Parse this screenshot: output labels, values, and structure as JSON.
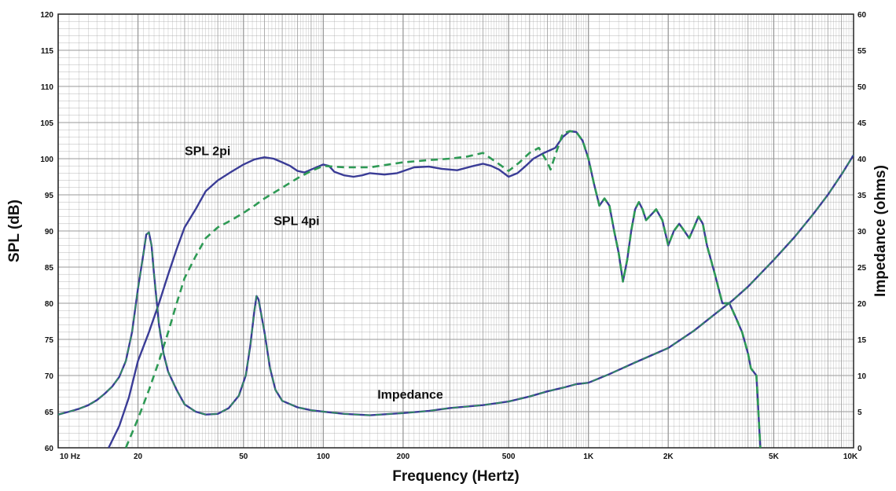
{
  "chart_data": {
    "type": "line",
    "title": "",
    "xlabel": "Frequency (Hertz)",
    "ylabel": "SPL (dB)",
    "y2label": "Impedance (ohms)",
    "x_scale": "log",
    "xlim": [
      10,
      10000
    ],
    "ylim": [
      60,
      120
    ],
    "y2lim": [
      0,
      60
    ],
    "grid": true,
    "x_ticks": [
      {
        "value": 10,
        "label": "10  Hz"
      },
      {
        "value": 20,
        "label": "20"
      },
      {
        "value": 50,
        "label": "50"
      },
      {
        "value": 100,
        "label": "100"
      },
      {
        "value": 200,
        "label": "200"
      },
      {
        "value": 500,
        "label": "500"
      },
      {
        "value": 1000,
        "label": "1K"
      },
      {
        "value": 2000,
        "label": "2K"
      },
      {
        "value": 5000,
        "label": "5K"
      },
      {
        "value": 10000,
        "label": "10K"
      }
    ],
    "y_ticks": [
      "60",
      "65",
      "70",
      "75",
      "80",
      "85",
      "90",
      "95",
      "100",
      "105",
      "110",
      "115",
      "120"
    ],
    "y2_ticks": [
      "0",
      "5",
      "10",
      "15",
      "20",
      "25",
      "30",
      "35",
      "40",
      "45",
      "50",
      "55",
      "60"
    ],
    "colors": {
      "spl_2pi": "#3a3c96",
      "spl_4pi": "#2e9a55",
      "impedance": "#3a3c96",
      "impedance_dash": "#2e9a55",
      "grid": "#9a9a9a"
    },
    "series": [
      {
        "name": "SPL 2pi",
        "axis": "left",
        "style": "solid",
        "points": [
          [
            15.5,
            60
          ],
          [
            17,
            63
          ],
          [
            18.5,
            67
          ],
          [
            20,
            72
          ],
          [
            22,
            76
          ],
          [
            24,
            80
          ],
          [
            26,
            84
          ],
          [
            28,
            87.5
          ],
          [
            30,
            90.5
          ],
          [
            33,
            93
          ],
          [
            36,
            95.5
          ],
          [
            40,
            97
          ],
          [
            45,
            98.2
          ],
          [
            50,
            99.2
          ],
          [
            55,
            99.9
          ],
          [
            60,
            100.2
          ],
          [
            65,
            100
          ],
          [
            70,
            99.5
          ],
          [
            75,
            99
          ],
          [
            80,
            98.3
          ],
          [
            85,
            98.1
          ],
          [
            90,
            98.5
          ],
          [
            100,
            99.2
          ],
          [
            105,
            99
          ],
          [
            110,
            98.2
          ],
          [
            120,
            97.7
          ],
          [
            130,
            97.5
          ],
          [
            140,
            97.7
          ],
          [
            150,
            98
          ],
          [
            170,
            97.8
          ],
          [
            190,
            98
          ],
          [
            220,
            98.8
          ],
          [
            250,
            98.9
          ],
          [
            280,
            98.6
          ],
          [
            320,
            98.4
          ],
          [
            360,
            98.9
          ],
          [
            400,
            99.3
          ],
          [
            430,
            99
          ],
          [
            460,
            98.5
          ],
          [
            500,
            97.5
          ],
          [
            540,
            98
          ],
          [
            580,
            99
          ],
          [
            620,
            100
          ],
          [
            680,
            100.8
          ],
          [
            750,
            101.5
          ],
          [
            800,
            103
          ],
          [
            850,
            103.8
          ],
          [
            900,
            103.7
          ],
          [
            950,
            102.5
          ],
          [
            1000,
            100
          ],
          [
            1050,
            96.5
          ],
          [
            1100,
            93.5
          ],
          [
            1150,
            94.5
          ],
          [
            1200,
            93.5
          ],
          [
            1250,
            90
          ],
          [
            1300,
            87
          ],
          [
            1350,
            83
          ],
          [
            1400,
            86
          ],
          [
            1450,
            90
          ],
          [
            1500,
            93
          ],
          [
            1550,
            94
          ],
          [
            1600,
            93
          ],
          [
            1650,
            91.5
          ],
          [
            1750,
            92.5
          ],
          [
            1800,
            93
          ],
          [
            1900,
            91.5
          ],
          [
            2000,
            88
          ],
          [
            2100,
            90
          ],
          [
            2200,
            91
          ],
          [
            2300,
            90
          ],
          [
            2400,
            89
          ],
          [
            2500,
            90.5
          ],
          [
            2600,
            92
          ],
          [
            2700,
            91
          ],
          [
            2800,
            88
          ],
          [
            3000,
            84
          ],
          [
            3200,
            80
          ],
          [
            3400,
            80
          ],
          [
            3600,
            78
          ],
          [
            3800,
            76
          ],
          [
            4000,
            73
          ],
          [
            4100,
            71
          ],
          [
            4300,
            70
          ],
          [
            4450,
            60
          ]
        ]
      },
      {
        "name": "SPL 4pi",
        "axis": "left",
        "style": "dashed",
        "points": [
          [
            18,
            60
          ],
          [
            20,
            64
          ],
          [
            22,
            68
          ],
          [
            24,
            72
          ],
          [
            26,
            76
          ],
          [
            28,
            80
          ],
          [
            30,
            83.5
          ],
          [
            33,
            86.5
          ],
          [
            36,
            89
          ],
          [
            40,
            90.5
          ],
          [
            45,
            91.5
          ],
          [
            50,
            92.5
          ],
          [
            55,
            93.5
          ],
          [
            60,
            94.5
          ],
          [
            70,
            96
          ],
          [
            80,
            97.3
          ],
          [
            90,
            98.3
          ],
          [
            100,
            99
          ],
          [
            120,
            98.8
          ],
          [
            150,
            98.8
          ],
          [
            200,
            99.5
          ],
          [
            250,
            99.8
          ],
          [
            300,
            100
          ],
          [
            350,
            100.3
          ],
          [
            400,
            100.8
          ],
          [
            450,
            99.5
          ],
          [
            500,
            98.3
          ],
          [
            550,
            99.5
          ],
          [
            600,
            100.8
          ],
          [
            650,
            101.5
          ],
          [
            700,
            99.5
          ],
          [
            720,
            98.5
          ],
          [
            750,
            100.5
          ],
          [
            800,
            103.5
          ],
          [
            850,
            103.8
          ],
          [
            900,
            103.7
          ],
          [
            950,
            102.5
          ],
          [
            1000,
            100
          ],
          [
            1050,
            96.5
          ],
          [
            1100,
            93.5
          ],
          [
            1150,
            94.5
          ],
          [
            1200,
            93.5
          ],
          [
            1250,
            90
          ],
          [
            1300,
            87
          ],
          [
            1350,
            83
          ],
          [
            1400,
            86
          ],
          [
            1450,
            90
          ],
          [
            1500,
            93
          ],
          [
            1550,
            94
          ],
          [
            1600,
            93
          ],
          [
            1650,
            91.5
          ],
          [
            1750,
            92.5
          ],
          [
            1800,
            93
          ],
          [
            1900,
            91.5
          ],
          [
            2000,
            88
          ],
          [
            2100,
            90
          ],
          [
            2200,
            91
          ],
          [
            2300,
            90
          ],
          [
            2400,
            89
          ],
          [
            2500,
            90.5
          ],
          [
            2600,
            92
          ],
          [
            2700,
            91
          ],
          [
            2800,
            88
          ],
          [
            3000,
            84
          ],
          [
            3200,
            80
          ],
          [
            3400,
            80
          ],
          [
            3600,
            78
          ],
          [
            3800,
            76
          ],
          [
            4000,
            73
          ],
          [
            4100,
            71
          ],
          [
            4300,
            70
          ],
          [
            4450,
            60
          ]
        ]
      },
      {
        "name": "Impedance",
        "axis": "right",
        "style": "solid-with-dashed-overlay",
        "points": [
          [
            10,
            4.6
          ],
          [
            11,
            5
          ],
          [
            12,
            5.4
          ],
          [
            13,
            5.9
          ],
          [
            14,
            6.6
          ],
          [
            15,
            7.5
          ],
          [
            16,
            8.5
          ],
          [
            17,
            9.8
          ],
          [
            18,
            12
          ],
          [
            19,
            16
          ],
          [
            20,
            22
          ],
          [
            21,
            27
          ],
          [
            21.5,
            29.5
          ],
          [
            22,
            29.8
          ],
          [
            22.5,
            28
          ],
          [
            23,
            24
          ],
          [
            24,
            17
          ],
          [
            25,
            13
          ],
          [
            26,
            10.5
          ],
          [
            28,
            8
          ],
          [
            30,
            6
          ],
          [
            33,
            5
          ],
          [
            36,
            4.6
          ],
          [
            40,
            4.7
          ],
          [
            44,
            5.5
          ],
          [
            48,
            7.2
          ],
          [
            51,
            10
          ],
          [
            53,
            14
          ],
          [
            55,
            19
          ],
          [
            56,
            21
          ],
          [
            57,
            20.5
          ],
          [
            58,
            19
          ],
          [
            60,
            16
          ],
          [
            63,
            11
          ],
          [
            66,
            8
          ],
          [
            70,
            6.5
          ],
          [
            80,
            5.6
          ],
          [
            90,
            5.2
          ],
          [
            100,
            5
          ],
          [
            120,
            4.7
          ],
          [
            150,
            4.5
          ],
          [
            200,
            4.8
          ],
          [
            250,
            5.1
          ],
          [
            300,
            5.5
          ],
          [
            400,
            5.9
          ],
          [
            500,
            6.4
          ],
          [
            600,
            7.1
          ],
          [
            700,
            7.8
          ],
          [
            800,
            8.3
          ],
          [
            900,
            8.8
          ],
          [
            1000,
            9
          ],
          [
            1200,
            10.2
          ],
          [
            1500,
            11.8
          ],
          [
            2000,
            13.8
          ],
          [
            2500,
            16.2
          ],
          [
            3000,
            18.5
          ],
          [
            3500,
            20.4
          ],
          [
            4000,
            22.3
          ],
          [
            5000,
            26
          ],
          [
            6000,
            29.2
          ],
          [
            7000,
            32.2
          ],
          [
            8000,
            35
          ],
          [
            9000,
            37.8
          ],
          [
            10000,
            40.5
          ]
        ]
      }
    ],
    "annotations": [
      {
        "text": "SPL 2pi",
        "x": 30,
        "y": 100.5
      },
      {
        "text": "SPL 4pi",
        "x": 65,
        "y": 90.8
      },
      {
        "text": "Impedance",
        "x": 160,
        "y": 66.8
      }
    ]
  }
}
